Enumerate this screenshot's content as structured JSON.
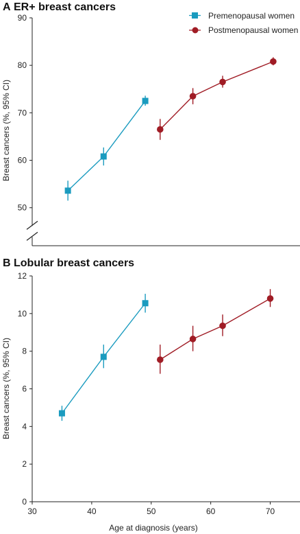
{
  "colors": {
    "pre": "#1a9bbf",
    "post": "#a01c25",
    "axis": "#222222"
  },
  "legend": [
    {
      "series": "Premenopausal women",
      "marker": "square",
      "color": "#1a9bbf"
    },
    {
      "series": "Postmenopausal women",
      "marker": "circle",
      "color": "#a01c25"
    }
  ],
  "chart_data": [
    {
      "type": "scatter",
      "panel": "A",
      "title": "ER+ breast cancers",
      "xlabel": "",
      "ylabel": "Breast cancers (%, 95% CI)",
      "xlim": [
        30,
        75
      ],
      "ylim": [
        42,
        90
      ],
      "yticks": [
        50,
        60,
        70,
        80,
        90
      ],
      "axis_break": true,
      "grid": false,
      "legend_position": "top-right",
      "series": [
        {
          "name": "Premenopausal women",
          "marker": "square",
          "x": [
            36,
            42,
            49
          ],
          "y": [
            53.6,
            60.8,
            72.5
          ],
          "ci_low": [
            51.5,
            58.9,
            71.5
          ],
          "ci_high": [
            55.7,
            62.7,
            73.6
          ]
        },
        {
          "name": "Postmenopausal women",
          "marker": "circle",
          "x": [
            51.5,
            57,
            62,
            70.5
          ],
          "y": [
            66.5,
            73.5,
            76.5,
            80.8
          ],
          "ci_low": [
            64.3,
            71.8,
            75.3,
            80.0
          ],
          "ci_high": [
            68.7,
            75.2,
            77.8,
            81.7
          ]
        }
      ]
    },
    {
      "type": "scatter",
      "panel": "B",
      "title": "Lobular breast cancers",
      "xlabel": "Age at diagnosis (years)",
      "ylabel": "Breast cancers (%, 95% CI)",
      "xlim": [
        30,
        75
      ],
      "ylim": [
        0,
        12
      ],
      "xticks": [
        30,
        40,
        50,
        60,
        70
      ],
      "yticks": [
        0,
        2,
        4,
        6,
        8,
        10,
        12
      ],
      "grid": false,
      "series": [
        {
          "name": "Premenopausal women",
          "marker": "square",
          "x": [
            35,
            42,
            49
          ],
          "y": [
            4.7,
            7.7,
            10.55
          ],
          "ci_low": [
            4.3,
            7.1,
            10.05
          ],
          "ci_high": [
            5.1,
            8.35,
            11.05
          ]
        },
        {
          "name": "Postmenopausal women",
          "marker": "circle",
          "x": [
            51.5,
            57,
            62,
            70
          ],
          "y": [
            7.55,
            8.65,
            9.35,
            10.8
          ],
          "ci_low": [
            6.8,
            8.0,
            8.8,
            10.35
          ],
          "ci_high": [
            8.35,
            9.35,
            9.95,
            11.3
          ]
        }
      ]
    }
  ]
}
